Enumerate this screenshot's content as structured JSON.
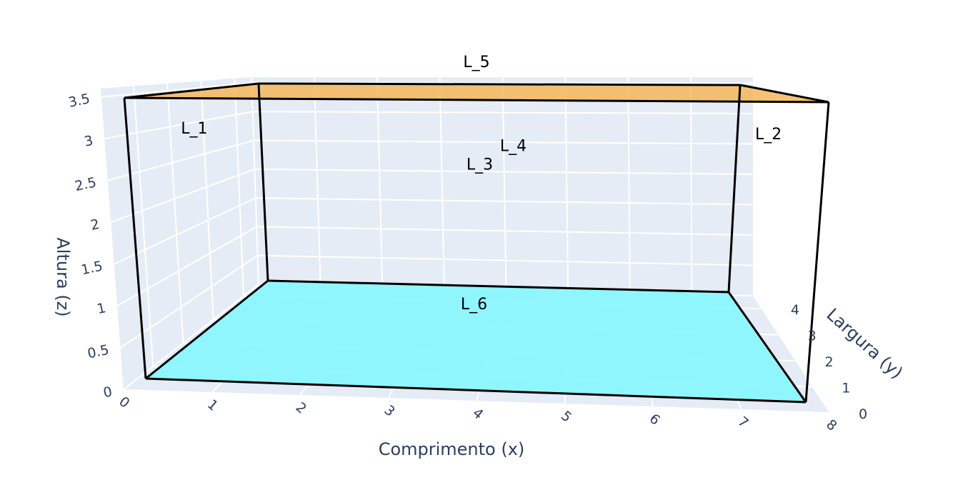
{
  "chart_data": {
    "type": "3d-box",
    "axes": {
      "x": {
        "title": "Comprimento (x)",
        "ticks": [
          "0",
          "1",
          "2",
          "3",
          "4",
          "5",
          "6",
          "7",
          "8"
        ],
        "range": [
          0,
          8
        ]
      },
      "y": {
        "title": "Largura (y)",
        "ticks": [
          "0",
          "1",
          "2",
          "3",
          "4"
        ],
        "range": [
          0,
          4.5
        ]
      },
      "z": {
        "title": "Altura (z)",
        "ticks": [
          "0",
          "0.5",
          "1",
          "1.5",
          "2",
          "2.5",
          "3",
          "3.5"
        ],
        "range": [
          0,
          3.6
        ]
      }
    },
    "box": {
      "x": [
        0,
        8
      ],
      "y": [
        0,
        4.5
      ],
      "z": [
        0,
        3.6
      ],
      "edge_color": "#000000"
    },
    "faces": [
      {
        "name": "L_1",
        "label": "L_1",
        "plane": "x=0",
        "fill": "none"
      },
      {
        "name": "L_2",
        "label": "L_2",
        "plane": "x=8",
        "fill": "none"
      },
      {
        "name": "L_3",
        "label": "L_3",
        "plane": "y=0",
        "fill": "none"
      },
      {
        "name": "L_4",
        "label": "L_4",
        "plane": "y=4.5",
        "fill": "none"
      },
      {
        "name": "L_5",
        "label": "L_5",
        "plane": "z=3.6",
        "fill": "#f5b75a"
      },
      {
        "name": "L_6",
        "label": "L_6",
        "plane": "z=0",
        "fill": "#8af7fd"
      }
    ],
    "grid": true,
    "background_color": "#e5ecf6",
    "grid_color": "#ffffff"
  }
}
